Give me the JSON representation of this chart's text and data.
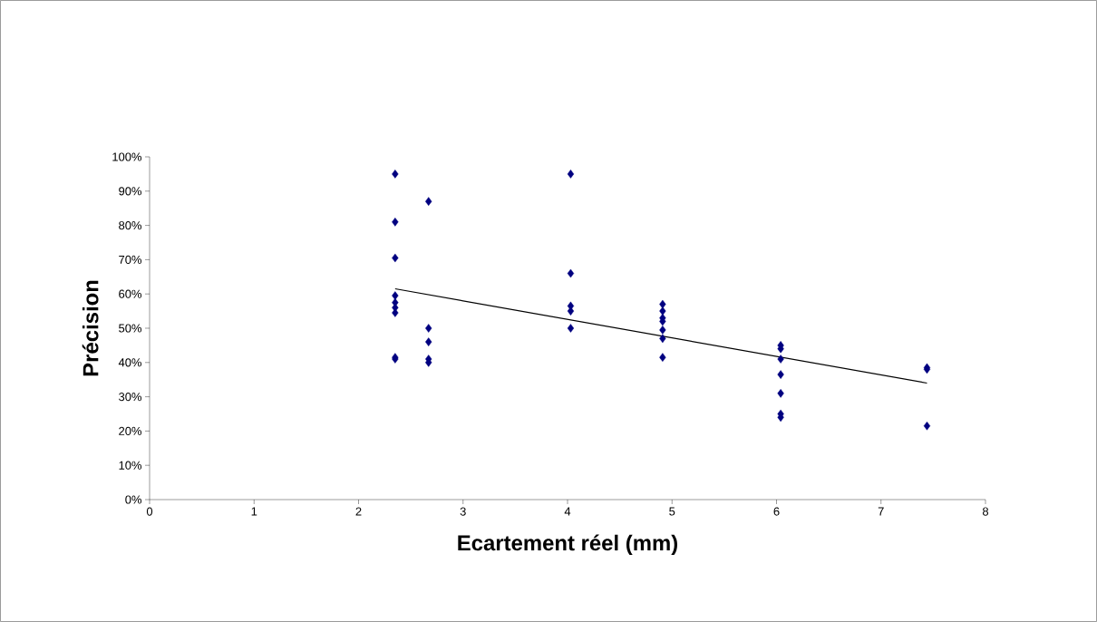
{
  "chart_data": {
    "type": "scatter",
    "xlabel": "Ecartement réel (mm)",
    "ylabel": "Précision",
    "marker": "diamond",
    "grid": false,
    "xlim": [
      0,
      8
    ],
    "xticks": [
      0,
      1,
      2,
      3,
      4,
      5,
      6,
      7,
      8
    ],
    "ylim": [
      0,
      100
    ],
    "yticks": [
      {
        "value": 0,
        "label": "0%"
      },
      {
        "value": 10,
        "label": "10%"
      },
      {
        "value": 20,
        "label": "20%"
      },
      {
        "value": 30,
        "label": "30%"
      },
      {
        "value": 40,
        "label": "40%"
      },
      {
        "value": 50,
        "label": "50%"
      },
      {
        "value": 60,
        "label": "60%"
      },
      {
        "value": 70,
        "label": "70%"
      },
      {
        "value": 80,
        "label": "80%"
      },
      {
        "value": 90,
        "label": "90%"
      },
      {
        "value": 100,
        "label": "100%"
      }
    ],
    "series": [
      {
        "color": "#000080",
        "x": [
          2.35,
          2.35,
          2.35,
          2.35,
          2.35,
          2.35,
          2.35,
          2.35,
          2.35,
          2.67,
          2.67,
          2.67,
          2.67,
          2.67,
          4.03,
          4.03,
          4.03,
          4.03,
          4.03,
          4.91,
          4.91,
          4.91,
          4.91,
          4.91,
          4.91,
          4.91,
          6.04,
          6.04,
          6.04,
          6.04,
          6.04,
          6.04,
          6.04,
          7.44,
          7.44,
          7.44
        ],
        "values": [
          95,
          81,
          70.5,
          59.5,
          57.5,
          56,
          54.5,
          41.5,
          41,
          87,
          50,
          46,
          41,
          40,
          95,
          66,
          56.5,
          55,
          50,
          57,
          55,
          53,
          52,
          49.5,
          47,
          41.5,
          45,
          44,
          41,
          36.5,
          31,
          25,
          24,
          38.5,
          38,
          21.5
        ]
      },
      {
        "type": "line",
        "color": "#000000",
        "marker": "none",
        "x": [
          2.35,
          7.44
        ],
        "values": [
          61.5,
          34
        ]
      }
    ]
  }
}
